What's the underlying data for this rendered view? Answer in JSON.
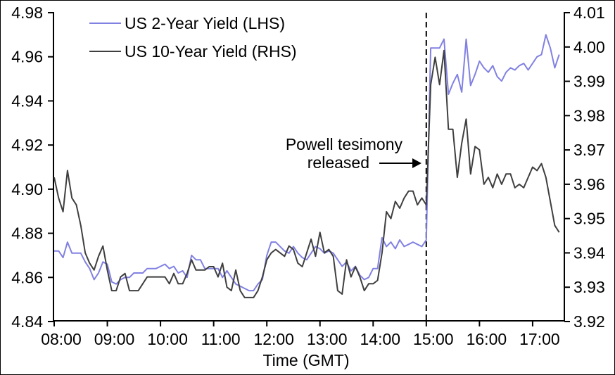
{
  "chart": {
    "legend": [
      {
        "label": "US 2-Year Yield (LHS)",
        "color": "#8181e2"
      },
      {
        "label": "US 10-Year Yield (RHS)",
        "color": "#3f3f3f"
      }
    ],
    "annotation": {
      "line1": "Powell tesimony",
      "line2": "released"
    },
    "event_line_time": "15:00",
    "x_axis": {
      "title": "Time (GMT)",
      "tick_labels": [
        "08:00",
        "09:00",
        "10:00",
        "11:00",
        "12:00",
        "13:00",
        "14:00",
        "15:00",
        "16:00",
        "17:00"
      ]
    },
    "left_axis": {
      "tick_labels": [
        "4.84",
        "4.86",
        "4.88",
        "4.90",
        "4.92",
        "4.94",
        "4.96",
        "4.98"
      ]
    },
    "right_axis": {
      "tick_labels": [
        "3.92",
        "3.93",
        "3.94",
        "3.95",
        "3.96",
        "3.97",
        "3.98",
        "3.99",
        "4.00",
        "4.01"
      ]
    }
  },
  "chart_data": {
    "type": "line",
    "xlabel": "Time (GMT)",
    "xlim": [
      "08:00",
      "17:35"
    ],
    "left_ylim": [
      4.84,
      4.98
    ],
    "right_ylim": [
      3.92,
      4.01
    ],
    "grid": false,
    "legend_position": "top-left-inside",
    "event_annotation": {
      "text": "Powell tesimony released",
      "time": "15:00",
      "style": "dashed-vertical-line-with-arrow"
    },
    "x_times": [
      "08:00",
      "08:05",
      "08:10",
      "08:15",
      "08:20",
      "08:25",
      "08:30",
      "08:35",
      "08:40",
      "08:45",
      "08:50",
      "08:55",
      "09:00",
      "09:05",
      "09:10",
      "09:15",
      "09:20",
      "09:25",
      "09:30",
      "09:35",
      "09:40",
      "09:45",
      "09:50",
      "09:55",
      "10:00",
      "10:05",
      "10:10",
      "10:15",
      "10:20",
      "10:25",
      "10:30",
      "10:35",
      "10:40",
      "10:45",
      "10:50",
      "10:55",
      "11:00",
      "11:05",
      "11:10",
      "11:15",
      "11:20",
      "11:25",
      "11:30",
      "11:35",
      "11:40",
      "11:45",
      "11:50",
      "11:55",
      "12:00",
      "12:05",
      "12:10",
      "12:15",
      "12:20",
      "12:25",
      "12:30",
      "12:35",
      "12:40",
      "12:45",
      "12:50",
      "12:55",
      "13:00",
      "13:05",
      "13:10",
      "13:15",
      "13:20",
      "13:25",
      "13:30",
      "13:35",
      "13:40",
      "13:45",
      "13:50",
      "13:55",
      "14:00",
      "14:05",
      "14:10",
      "14:15",
      "14:20",
      "14:25",
      "14:30",
      "14:35",
      "14:40",
      "14:45",
      "14:50",
      "14:55",
      "15:00",
      "15:05",
      "15:10",
      "15:15",
      "15:20",
      "15:25",
      "15:30",
      "15:35",
      "15:40",
      "15:45",
      "15:50",
      "15:55",
      "16:00",
      "16:05",
      "16:10",
      "16:15",
      "16:20",
      "16:25",
      "16:30",
      "16:35",
      "16:40",
      "16:45",
      "16:50",
      "16:55",
      "17:00",
      "17:05",
      "17:10",
      "17:15",
      "17:20",
      "17:25",
      "17:30"
    ],
    "series": [
      {
        "name": "US 2-Year Yield (LHS)",
        "axis": "left",
        "color": "#8181e2",
        "values": [
          4.872,
          4.872,
          4.869,
          4.876,
          4.871,
          4.871,
          4.871,
          4.867,
          4.864,
          4.859,
          4.862,
          4.867,
          4.866,
          4.858,
          4.857,
          4.859,
          4.86,
          4.86,
          4.862,
          4.862,
          4.862,
          4.864,
          4.864,
          4.864,
          4.865,
          4.866,
          4.864,
          4.865,
          4.862,
          4.863,
          4.86,
          4.87,
          4.868,
          4.868,
          4.864,
          4.864,
          4.864,
          4.864,
          4.86,
          4.863,
          4.86,
          4.857,
          4.856,
          4.855,
          4.854,
          4.854,
          4.857,
          4.859,
          4.87,
          4.876,
          4.876,
          4.874,
          4.872,
          4.871,
          4.874,
          4.871,
          4.869,
          4.868,
          4.871,
          4.874,
          4.873,
          4.871,
          4.872,
          4.871,
          4.868,
          4.865,
          4.867,
          4.863,
          4.865,
          4.861,
          4.859,
          4.86,
          4.864,
          4.864,
          4.878,
          4.874,
          4.876,
          4.873,
          4.877,
          4.874,
          4.875,
          4.876,
          4.875,
          4.874,
          4.877,
          4.964,
          4.964,
          4.964,
          4.968,
          4.943,
          4.948,
          4.952,
          4.944,
          4.968,
          4.947,
          4.952,
          4.958,
          4.955,
          4.953,
          4.956,
          4.951,
          4.949,
          4.953,
          4.955,
          4.954,
          4.956,
          4.957,
          4.954,
          4.957,
          4.96,
          4.961,
          4.97,
          4.964,
          4.955,
          4.961
        ]
      },
      {
        "name": "US 10-Year Yield (RHS)",
        "axis": "right",
        "color": "#3f3f3f",
        "values": [
          3.962,
          3.956,
          3.952,
          3.964,
          3.956,
          3.954,
          3.948,
          3.94,
          3.937,
          3.935,
          3.939,
          3.942,
          3.935,
          3.929,
          3.929,
          3.933,
          3.934,
          3.929,
          3.929,
          3.929,
          3.931,
          3.933,
          3.933,
          3.933,
          3.933,
          3.933,
          3.931,
          3.934,
          3.931,
          3.931,
          3.934,
          3.938,
          3.935,
          3.935,
          3.935,
          3.936,
          3.936,
          3.933,
          3.937,
          3.93,
          3.929,
          3.935,
          3.929,
          3.927,
          3.927,
          3.927,
          3.929,
          3.933,
          3.938,
          3.94,
          3.941,
          3.94,
          3.939,
          3.942,
          3.941,
          3.937,
          3.936,
          3.94,
          3.944,
          3.939,
          3.946,
          3.94,
          3.941,
          3.939,
          3.929,
          3.928,
          3.938,
          3.933,
          3.936,
          3.933,
          3.929,
          3.931,
          3.931,
          3.932,
          3.94,
          3.952,
          3.95,
          3.955,
          3.953,
          3.956,
          3.958,
          3.958,
          3.954,
          3.956,
          3.954,
          3.989,
          3.997,
          3.989,
          3.999,
          3.976,
          3.976,
          3.962,
          3.972,
          3.979,
          3.963,
          3.971,
          3.97,
          3.96,
          3.962,
          3.959,
          3.963,
          3.96,
          3.963,
          3.963,
          3.959,
          3.96,
          3.959,
          3.962,
          3.965,
          3.964,
          3.966,
          3.962,
          3.955,
          3.948,
          3.946
        ]
      }
    ]
  }
}
